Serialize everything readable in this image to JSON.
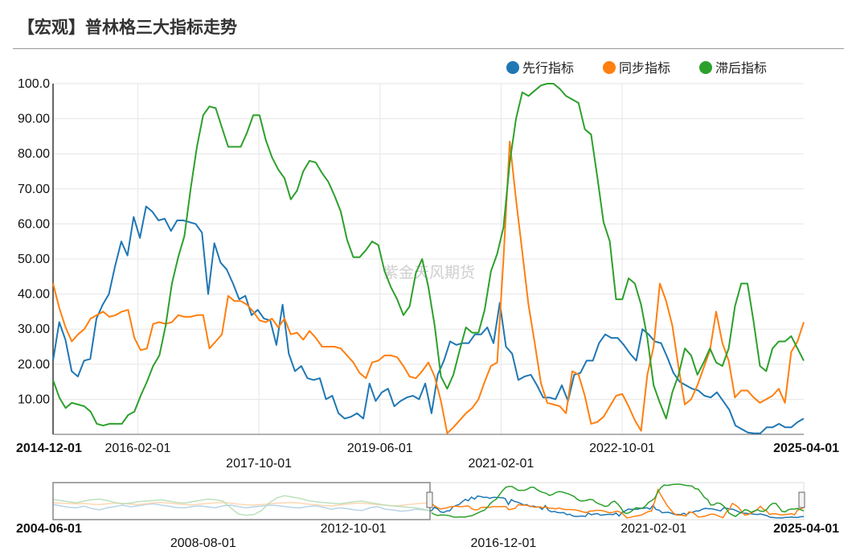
{
  "title": "【宏观】普林格三大指标走势",
  "watermark": "紫金天风期货",
  "colors": {
    "leading": "#1f77b4",
    "coincident": "#ff7f0e",
    "lagging": "#2ca02c",
    "grid": "#e6e6e6"
  },
  "chart_data": {
    "type": "line",
    "title": "【宏观】普林格三大指标走势",
    "ylim": [
      0,
      100
    ],
    "y_ticks": [
      "10.00",
      "20.00",
      "30.00",
      "40.00",
      "50.00",
      "60.00",
      "70.00",
      "80.00",
      "90.00",
      "100.0"
    ],
    "x_range": [
      "2014-12-01",
      "2025-04-01"
    ],
    "x_ticks": [
      {
        "label": "2014-12-01",
        "row": 1,
        "bold": true
      },
      {
        "label": "2016-02-01",
        "row": 1,
        "bold": false
      },
      {
        "label": "2017-10-01",
        "row": 2,
        "bold": false
      },
      {
        "label": "2019-06-01",
        "row": 1,
        "bold": false
      },
      {
        "label": "2021-02-01",
        "row": 2,
        "bold": false
      },
      {
        "label": "2022-10-01",
        "row": 1,
        "bold": false
      },
      {
        "label": "2025-04-01",
        "row": 1,
        "bold": true
      }
    ],
    "legend_position": "top-right",
    "series": [
      {
        "name": "先行指标",
        "key": "leading",
        "values": [
          21,
          32,
          27,
          18,
          16.5,
          21,
          21.5,
          33,
          37,
          40,
          48,
          55,
          51,
          62,
          56,
          65,
          63.5,
          61,
          61.5,
          58,
          61,
          61,
          60.5,
          60,
          57.5,
          40,
          54.5,
          49,
          47,
          43,
          38.5,
          39.5,
          34,
          35.5,
          33,
          32.5,
          25.5,
          37,
          23,
          18,
          19.5,
          16,
          15.5,
          16,
          10,
          11,
          6,
          4.5,
          5,
          6,
          4.5,
          14.5,
          9.5,
          12,
          13,
          8,
          9.5,
          10.5,
          11,
          10,
          14.5,
          6,
          17,
          21,
          26.5,
          25.5,
          26,
          26,
          28.5,
          28.5,
          30.5,
          26,
          37.5,
          25,
          23,
          15.5,
          16.5,
          17,
          14,
          10.5,
          10.5,
          10,
          14,
          9.5,
          17,
          17.5,
          21,
          21,
          26,
          28.5,
          27.5,
          27.5,
          25.5,
          23,
          21,
          30,
          28.5,
          26.5,
          26,
          22,
          17.5,
          15,
          14,
          13,
          12.5,
          11,
          10.5,
          12,
          9.5,
          7,
          2.5,
          1.5,
          0.5,
          0.3,
          0.3,
          2,
          2,
          3,
          2,
          2,
          3.5,
          4.5
        ]
      },
      {
        "name": "同步指标",
        "key": "coincident",
        "values": [
          43,
          36,
          30.5,
          26.5,
          28.5,
          30,
          33,
          34,
          35,
          33.5,
          34,
          35,
          35.5,
          27.5,
          24,
          24.5,
          31.5,
          32,
          31.5,
          32,
          34,
          33.5,
          33.5,
          34,
          34,
          24.5,
          26.5,
          28.5,
          39.5,
          38,
          38,
          37,
          35,
          32.5,
          32,
          33,
          30.5,
          33,
          28.5,
          29,
          27,
          29.5,
          27.5,
          25,
          25,
          25,
          24.5,
          22.5,
          20.5,
          17.5,
          16,
          20.5,
          21,
          22.5,
          22.5,
          22,
          19.5,
          16.5,
          16,
          18,
          20.5,
          16.5,
          9.5,
          0.3,
          2,
          4,
          6,
          7.5,
          10,
          15,
          19.5,
          20.5,
          50,
          83.5,
          67,
          52,
          37,
          26,
          14.5,
          9,
          8.5,
          8,
          6,
          18,
          17,
          11,
          3,
          3.5,
          5,
          8,
          11,
          11.5,
          8,
          4,
          1,
          17,
          25,
          43,
          38,
          31,
          19,
          8.5,
          10,
          14,
          19,
          24,
          35,
          26,
          21,
          10.5,
          12.5,
          12.5,
          10.5,
          9,
          10,
          11,
          13,
          9,
          23.5,
          26.5,
          32
        ]
      },
      {
        "name": "滞后指标",
        "key": "lagging",
        "values": [
          15.5,
          10.5,
          7.5,
          9,
          8.5,
          8,
          6.5,
          3,
          2.5,
          3,
          3,
          3,
          5.5,
          6.5,
          11,
          15,
          19.5,
          22.5,
          31,
          43,
          50.5,
          56.5,
          70,
          82,
          91,
          93.5,
          93,
          87.5,
          82,
          82,
          82,
          86,
          91,
          91,
          84,
          79,
          75.5,
          73,
          67,
          69.5,
          75,
          78,
          77.5,
          74.5,
          72,
          68,
          63.5,
          55.5,
          50.5,
          50.5,
          52.5,
          55,
          54,
          46.5,
          42,
          38.5,
          34,
          36.5,
          46,
          50,
          42,
          31,
          16.5,
          13,
          17,
          24,
          30.5,
          29,
          29,
          35.5,
          46.5,
          51.5,
          59,
          77.5,
          90,
          97.5,
          96.5,
          98,
          99.5,
          100,
          100,
          98.5,
          96.5,
          95.5,
          94.5,
          87,
          85.5,
          73.5,
          60.5,
          55,
          38.5,
          38.5,
          44.5,
          43,
          37,
          27.5,
          14,
          9,
          4.5,
          12,
          17,
          24.5,
          22.5,
          17,
          20.5,
          24.5,
          20.5,
          19.5,
          24.5,
          36.5,
          43,
          43,
          32,
          19.5,
          18,
          24.5,
          26.5,
          26.5,
          28,
          24.5,
          21
        ]
      }
    ],
    "navigator": {
      "x_range": [
        "2004-06-01",
        "2025-04-01"
      ],
      "x_ticks": [
        {
          "label": "2004-06-01",
          "row": 1,
          "bold": true
        },
        {
          "label": "2008-08-01",
          "row": 2,
          "bold": false
        },
        {
          "label": "2012-10-01",
          "row": 1,
          "bold": false
        },
        {
          "label": "2016-12-01",
          "row": 2,
          "bold": false
        },
        {
          "label": "2021-02-01",
          "row": 1,
          "bold": false
        },
        {
          "label": "2025-04-01",
          "row": 1,
          "bold": true
        }
      ],
      "window_start": "2014-12-01",
      "window_end": "2025-04-01",
      "history": {
        "leading": [
          40,
          36,
          32,
          30,
          35,
          28,
          24,
          30,
          34,
          38,
          33,
          36,
          40,
          42,
          38,
          35,
          31,
          30,
          34,
          36,
          33,
          30,
          36,
          38,
          34,
          30,
          33,
          35,
          38,
          37,
          34,
          31,
          30,
          34,
          36,
          32,
          26,
          30,
          28,
          24,
          22,
          30,
          34,
          26,
          24,
          20,
          22,
          26,
          24,
          22
        ],
        "coincident": [
          45,
          44,
          43,
          42,
          43,
          41,
          40,
          42,
          44,
          43,
          41,
          40,
          42,
          45,
          46,
          44,
          42,
          40,
          39,
          41,
          43,
          45,
          46,
          44,
          41,
          39,
          38,
          40,
          42,
          44,
          45,
          46,
          44,
          41,
          39,
          37,
          36,
          38,
          41,
          43,
          44,
          42,
          40,
          38,
          36,
          37,
          40,
          42,
          44,
          43
        ],
        "lagging": [
          55,
          52,
          48,
          45,
          50,
          54,
          56,
          52,
          46,
          42,
          44,
          48,
          50,
          52,
          54,
          50,
          46,
          44,
          48,
          52,
          56,
          54,
          50,
          30,
          12,
          8,
          10,
          22,
          45,
          60,
          66,
          62,
          58,
          52,
          48,
          46,
          44,
          42,
          45,
          48,
          50,
          46,
          42,
          38,
          36,
          34,
          32,
          30,
          26,
          20
        ]
      }
    }
  }
}
